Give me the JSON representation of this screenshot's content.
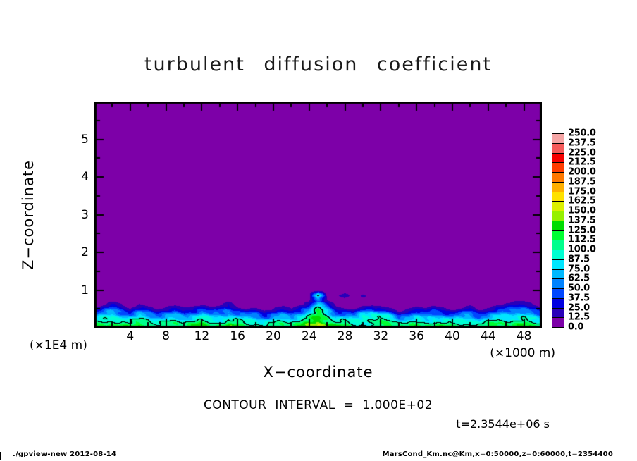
{
  "title": "turbulent diffusion coefficient",
  "axes": {
    "x_label": "X−coordinate",
    "x_unit": "(×1000 m)",
    "x_ticks": [
      4,
      8,
      12,
      16,
      20,
      24,
      28,
      32,
      36,
      40,
      44,
      48
    ],
    "y_label": "Z−coordinate",
    "y_unit": "(×1E4 m)",
    "y_ticks": [
      1,
      2,
      3,
      4,
      5
    ]
  },
  "annotations": {
    "contour_interval": "CONTOUR INTERVAL = 1.000E+02",
    "time": "t=2.3544e+06 s"
  },
  "footer": {
    "left": "./gpview-new  2012-08-14",
    "right": "MarsCond_Km.nc@Km,x=0:50000,z=0:60000,t=2354400"
  },
  "chart_data": {
    "type": "heatmap",
    "title": "turbulent diffusion coefficient",
    "xlabel": "X−coordinate (×1000 m)",
    "ylabel": "Z−coordinate (×1E4 m)",
    "x_range_m": [
      0,
      50000
    ],
    "z_range_m": [
      0,
      60000
    ],
    "contour_interval": 100,
    "contour_levels": [
      100
    ],
    "level_step": 12.5,
    "levels": [
      0,
      12.5,
      25,
      37.5,
      50,
      62.5,
      75,
      87.5,
      100,
      112.5,
      125,
      137.5,
      150,
      162.5,
      175,
      187.5,
      200,
      212.5,
      225,
      237.5,
      250
    ],
    "colorbar_labels": [
      "0.0",
      "12.5",
      "25.0",
      "37.5",
      "50.0",
      "62.5",
      "75.0",
      "87.5",
      "100.0",
      "112.5",
      "125.0",
      "137.5",
      "150.0",
      "162.5",
      "175.0",
      "187.5",
      "200.0",
      "212.5",
      "225.0",
      "237.5",
      "250.0"
    ],
    "palette": [
      "#7d00a8",
      "#2800b9",
      "#0000e1",
      "#0046ff",
      "#0082ff",
      "#00b9ff",
      "#00e6ff",
      "#00ffd2",
      "#00ff8c",
      "#00ff32",
      "#00dc00",
      "#96f000",
      "#dcf000",
      "#ffe100",
      "#ffaf00",
      "#ff7800",
      "#ff3c00",
      "#f50000",
      "#f55a5a",
      "#f5a5a5"
    ],
    "background_value_color": "#7d00a8",
    "grid": {
      "x_km": [
        0,
        1,
        2,
        3,
        4,
        5,
        6,
        7,
        8,
        9,
        10,
        11,
        12,
        13,
        14,
        15,
        16,
        17,
        18,
        19,
        20,
        21,
        22,
        23,
        24,
        25,
        26,
        27,
        28,
        29,
        30,
        31,
        32,
        33,
        34,
        35,
        36,
        37,
        38,
        39,
        40,
        41,
        42,
        43,
        44,
        45,
        46,
        47,
        48,
        49,
        50
      ],
      "z_m": [
        0,
        1000,
        2000,
        3000,
        4000,
        5000,
        6000,
        7000,
        8500,
        10000,
        12000
      ],
      "values": [
        [
          118,
          125,
          131,
          128,
          122,
          130,
          126,
          118,
          124,
          128,
          122,
          126,
          131,
          124,
          128,
          133,
          126,
          120,
          124,
          117,
          122,
          126,
          120,
          128,
          142,
          172,
          160,
          130,
          124,
          118,
          122,
          118,
          126,
          130,
          124,
          120,
          126,
          122,
          128,
          124,
          118,
          122,
          126,
          120,
          124,
          128,
          122,
          126,
          131,
          126,
          122
        ],
        [
          100,
          112,
          120,
          115,
          105,
          118,
          112,
          100,
          108,
          114,
          106,
          110,
          118,
          108,
          112,
          122,
          112,
          102,
          106,
          96,
          104,
          110,
          102,
          114,
          130,
          150,
          134,
          114,
          106,
          98,
          104,
          96,
          108,
          112,
          100,
          100,
          110,
          104,
          112,
          108,
          98,
          104,
          110,
          100,
          106,
          112,
          108,
          112,
          120,
          112,
          104
        ],
        [
          80,
          95,
          105,
          98,
          85,
          100,
          92,
          78,
          88,
          95,
          84,
          90,
          100,
          88,
          92,
          105,
          92,
          80,
          84,
          70,
          82,
          90,
          80,
          95,
          115,
          136,
          120,
          94,
          86,
          76,
          92,
          104,
          106,
          96,
          74,
          78,
          90,
          82,
          94,
          88,
          76,
          82,
          90,
          78,
          86,
          94,
          92,
          98,
          105,
          94,
          82
        ],
        [
          58,
          74,
          88,
          78,
          62,
          80,
          70,
          55,
          66,
          75,
          62,
          70,
          82,
          66,
          72,
          88,
          70,
          58,
          62,
          46,
          60,
          70,
          58,
          75,
          98,
          124,
          104,
          72,
          64,
          54,
          96,
          108,
          104,
          80,
          40,
          55,
          70,
          60,
          74,
          66,
          52,
          60,
          70,
          55,
          64,
          74,
          75,
          82,
          90,
          75,
          60
        ],
        [
          34,
          52,
          68,
          56,
          38,
          58,
          46,
          30,
          42,
          52,
          38,
          46,
          60,
          42,
          50,
          68,
          46,
          34,
          38,
          22,
          36,
          48,
          34,
          52,
          78,
          115,
          84,
          48,
          40,
          28,
          60,
          76,
          70,
          48,
          14,
          30,
          46,
          36,
          52,
          42,
          26,
          36,
          48,
          30,
          40,
          52,
          56,
          64,
          72,
          55,
          36
        ],
        [
          14,
          30,
          46,
          34,
          16,
          36,
          24,
          10,
          20,
          30,
          16,
          24,
          38,
          20,
          28,
          46,
          24,
          12,
          16,
          5,
          14,
          26,
          12,
          30,
          55,
          108,
          60,
          26,
          18,
          8,
          24,
          36,
          30,
          16,
          2,
          10,
          24,
          14,
          30,
          20,
          6,
          14,
          26,
          8,
          18,
          30,
          36,
          44,
          52,
          34,
          16
        ],
        [
          2,
          12,
          26,
          15,
          3,
          16,
          6,
          0,
          4,
          12,
          2,
          6,
          18,
          4,
          8,
          26,
          6,
          1,
          2,
          0,
          2,
          8,
          1,
          12,
          32,
          96,
          38,
          8,
          3,
          0,
          4,
          8,
          6,
          2,
          0,
          1,
          6,
          2,
          10,
          4,
          0,
          2,
          8,
          0,
          4,
          12,
          18,
          26,
          32,
          15,
          3
        ],
        [
          0,
          2,
          10,
          3,
          0,
          4,
          0,
          0,
          0,
          2,
          0,
          0,
          5,
          0,
          1,
          9,
          0,
          0,
          0,
          0,
          0,
          1,
          0,
          2,
          12,
          44,
          14,
          1,
          0,
          0,
          0,
          1,
          1,
          0,
          0,
          0,
          0,
          0,
          2,
          0,
          0,
          0,
          1,
          0,
          0,
          2,
          6,
          10,
          12,
          4,
          0
        ],
        [
          0,
          0,
          1,
          0,
          0,
          0,
          0,
          0,
          0,
          0,
          0,
          0,
          0,
          0,
          0,
          1,
          0,
          0,
          0,
          0,
          0,
          0,
          0,
          0,
          2,
          110,
          5,
          3,
          22,
          3,
          18,
          0,
          0,
          0,
          0,
          0,
          0,
          0,
          0,
          0,
          0,
          0,
          0,
          0,
          0,
          0,
          0,
          1,
          2,
          0,
          0
        ],
        [
          0,
          0,
          0,
          0,
          0,
          0,
          0,
          0,
          0,
          0,
          0,
          0,
          0,
          0,
          0,
          0,
          0,
          0,
          0,
          0,
          0,
          0,
          0,
          0,
          0,
          0,
          0,
          0,
          0,
          0,
          0,
          0,
          0,
          0,
          0,
          0,
          0,
          0,
          0,
          0,
          0,
          0,
          0,
          0,
          0,
          0,
          0,
          0,
          0,
          0,
          0
        ],
        [
          0,
          0,
          0,
          0,
          0,
          0,
          0,
          0,
          0,
          0,
          0,
          0,
          0,
          0,
          0,
          0,
          0,
          0,
          0,
          0,
          0,
          0,
          0,
          0,
          0,
          0,
          0,
          0,
          0,
          0,
          0,
          0,
          0,
          0,
          0,
          0,
          0,
          0,
          0,
          0,
          0,
          0,
          0,
          0,
          0,
          0,
          0,
          0,
          0,
          0,
          0
        ]
      ]
    }
  }
}
